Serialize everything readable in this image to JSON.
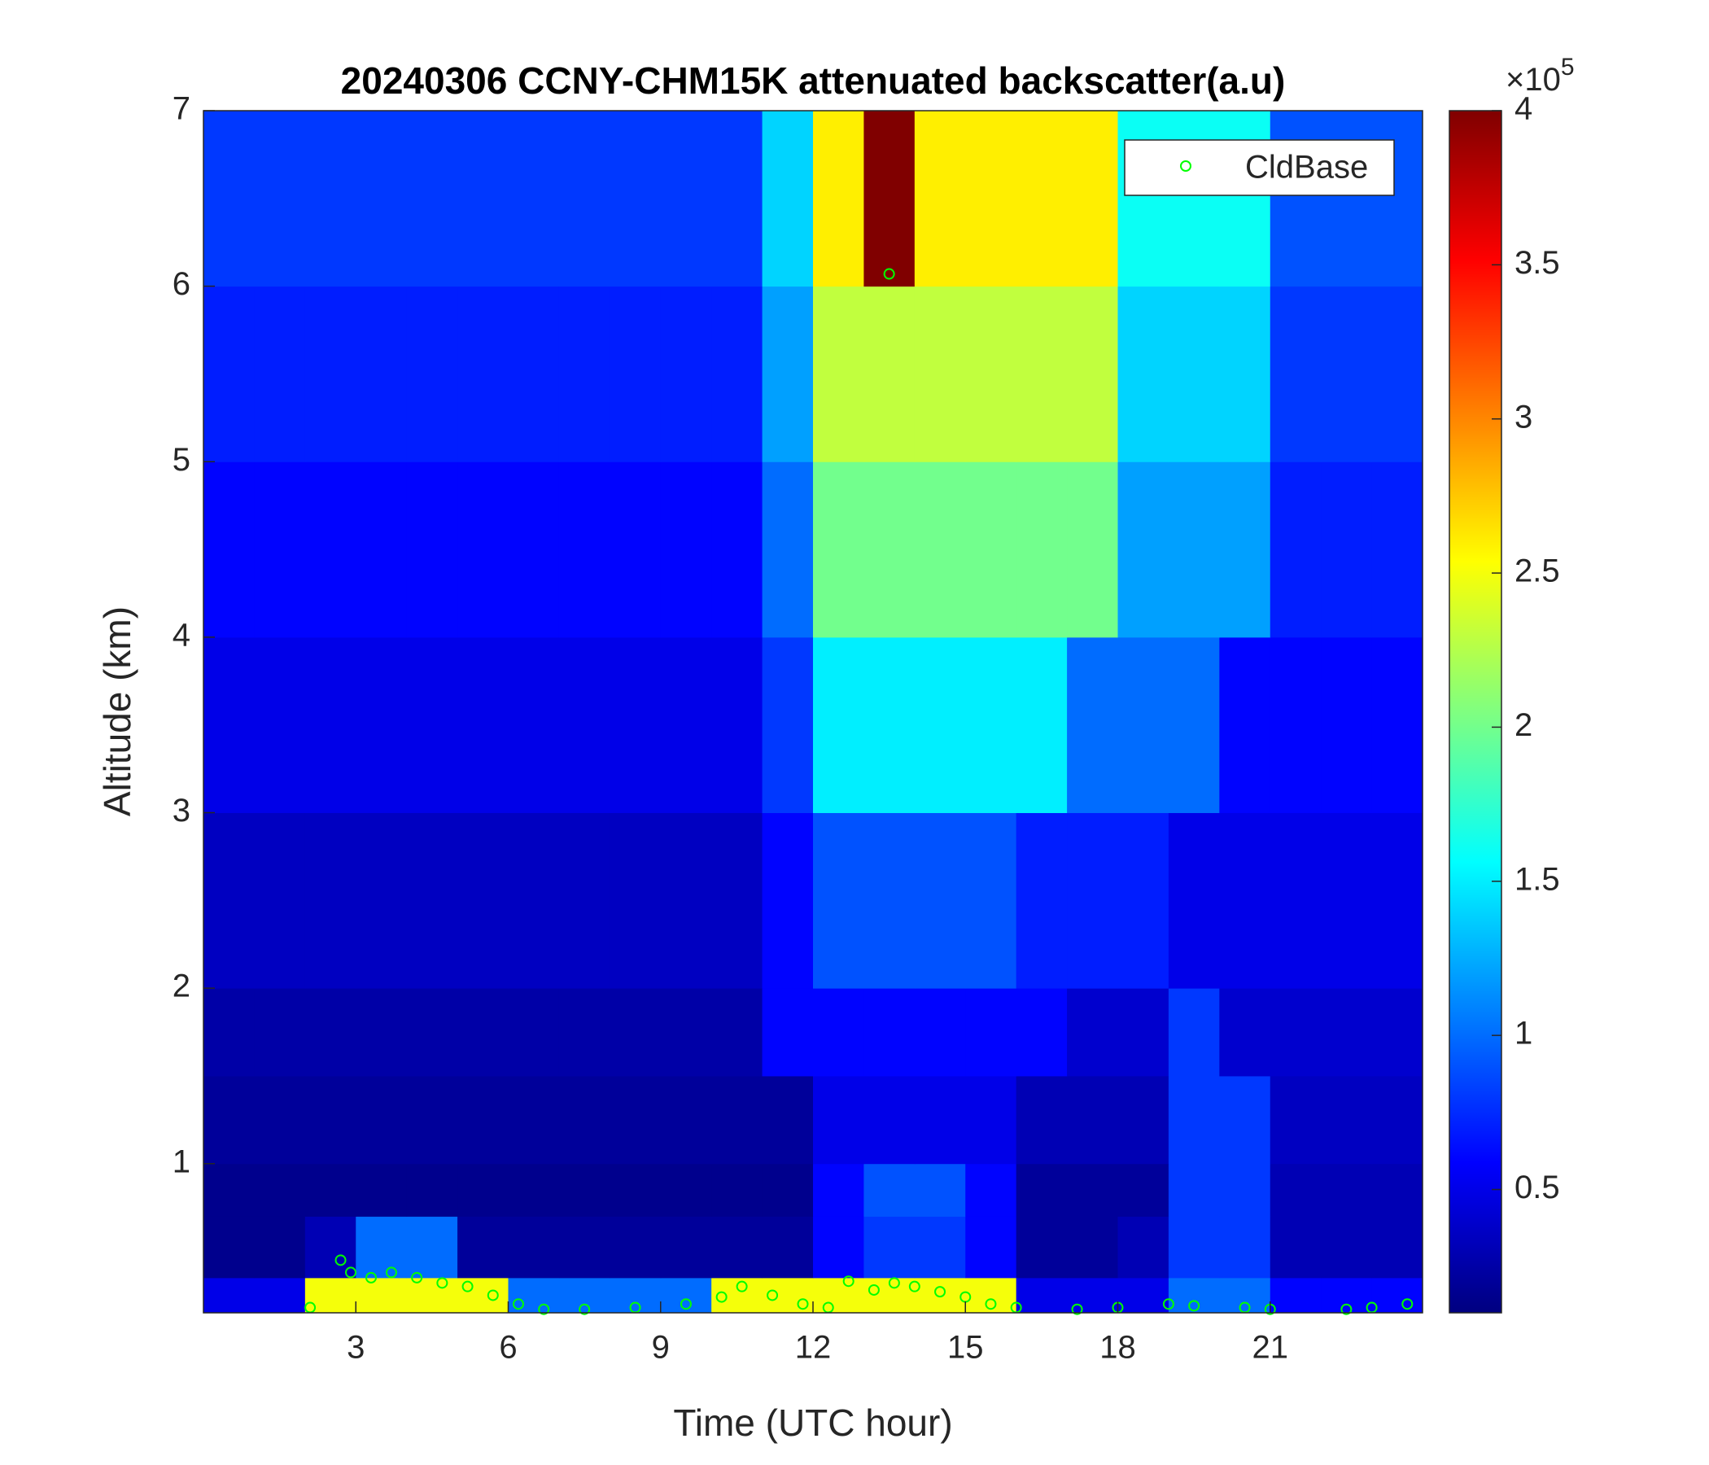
{
  "chart_data": {
    "type": "heatmap",
    "title": "20240306 CCNY-CHM15K attenuated backscatter(a.u)",
    "x_label": "Time (UTC hour)",
    "y_label": "Altitude (km)",
    "xlim": [
      0,
      24
    ],
    "xticks": [
      3,
      6,
      9,
      12,
      15,
      18,
      21
    ],
    "ylim": [
      0.15,
      7
    ],
    "yticks": [
      1,
      2,
      3,
      4,
      5,
      6,
      7
    ],
    "colormap": "jet",
    "clim": [
      0.1,
      4
    ],
    "cticks": [
      0.5,
      1,
      1.5,
      2,
      2.5,
      3,
      3.5,
      4
    ],
    "colorbar_scale": {
      "base": "×10",
      "exponent": "5"
    },
    "x_bins": [
      0,
      1,
      2,
      3,
      4,
      5,
      6,
      7,
      8,
      9,
      10,
      11,
      12,
      13,
      14,
      15,
      16,
      17,
      18,
      19,
      20,
      21,
      22,
      23,
      24
    ],
    "y_bins": [
      0.15,
      0.35,
      0.7,
      1,
      1.5,
      2,
      3,
      4,
      5,
      6,
      7
    ],
    "z": [
      [
        0.5,
        0.5,
        2.5,
        2.5,
        2.5,
        2.5,
        1.0,
        1.0,
        1.0,
        1.0,
        2.5,
        2.5,
        2.5,
        2.5,
        2.5,
        2.5,
        0.5,
        0.5,
        0.5,
        1.0,
        1.0,
        0.6,
        0.6,
        0.6
      ],
      [
        0.15,
        0.15,
        0.3,
        1.0,
        1.0,
        0.2,
        0.2,
        0.2,
        0.2,
        0.2,
        0.2,
        0.2,
        0.6,
        0.8,
        0.8,
        0.6,
        0.2,
        0.2,
        0.3,
        0.8,
        0.8,
        0.3,
        0.3,
        0.3
      ],
      [
        0.15,
        0.15,
        0.15,
        0.15,
        0.15,
        0.15,
        0.15,
        0.15,
        0.15,
        0.15,
        0.15,
        0.15,
        0.6,
        0.9,
        0.9,
        0.6,
        0.2,
        0.2,
        0.2,
        0.8,
        0.8,
        0.3,
        0.3,
        0.3
      ],
      [
        0.2,
        0.2,
        0.2,
        0.2,
        0.2,
        0.2,
        0.2,
        0.2,
        0.2,
        0.2,
        0.2,
        0.2,
        0.5,
        0.5,
        0.5,
        0.5,
        0.3,
        0.3,
        0.3,
        0.8,
        0.8,
        0.35,
        0.35,
        0.35
      ],
      [
        0.25,
        0.25,
        0.25,
        0.25,
        0.25,
        0.25,
        0.25,
        0.25,
        0.25,
        0.25,
        0.25,
        0.6,
        0.6,
        0.6,
        0.6,
        0.6,
        0.6,
        0.4,
        0.4,
        0.8,
        0.4,
        0.4,
        0.4,
        0.4
      ],
      [
        0.35,
        0.35,
        0.35,
        0.35,
        0.35,
        0.35,
        0.35,
        0.35,
        0.35,
        0.35,
        0.35,
        0.6,
        0.9,
        0.9,
        0.9,
        0.9,
        0.7,
        0.7,
        0.7,
        0.5,
        0.5,
        0.5,
        0.5,
        0.5
      ],
      [
        0.5,
        0.5,
        0.5,
        0.5,
        0.5,
        0.5,
        0.5,
        0.5,
        0.5,
        0.5,
        0.5,
        0.8,
        1.5,
        1.5,
        1.5,
        1.5,
        1.5,
        1.0,
        1.0,
        1.0,
        0.6,
        0.6,
        0.6,
        0.6
      ],
      [
        0.6,
        0.6,
        0.6,
        0.6,
        0.6,
        0.6,
        0.6,
        0.6,
        0.6,
        0.6,
        0.6,
        1.0,
        2.0,
        2.0,
        2.0,
        2.0,
        2.0,
        2.0,
        1.2,
        1.2,
        1.2,
        0.7,
        0.7,
        0.7
      ],
      [
        0.7,
        0.7,
        0.7,
        0.7,
        0.7,
        0.7,
        0.7,
        0.7,
        0.7,
        0.7,
        0.7,
        1.2,
        2.3,
        2.3,
        2.3,
        2.3,
        2.3,
        2.3,
        1.4,
        1.4,
        1.4,
        0.8,
        0.8,
        0.8
      ],
      [
        0.8,
        0.8,
        0.8,
        0.8,
        0.8,
        0.8,
        0.8,
        0.8,
        0.8,
        0.8,
        0.8,
        1.4,
        2.6,
        4,
        2.6,
        2.6,
        2.6,
        2.6,
        1.6,
        1.6,
        1.6,
        0.9,
        0.9,
        0.9
      ]
    ],
    "series": [
      {
        "name": "CldBase",
        "color": "#00ff00",
        "type": "scatter",
        "x": [
          2.1,
          2.7,
          2.9,
          3.3,
          3.7,
          4.2,
          4.7,
          5.2,
          5.7,
          6.2,
          6.7,
          7.5,
          8.5,
          9.5,
          10.2,
          10.6,
          11.2,
          11.8,
          12.3,
          12.7,
          13.2,
          13.5,
          13.6,
          14.0,
          14.5,
          15.0,
          15.5,
          16.0,
          17.2,
          18.0,
          19.0,
          19.5,
          20.5,
          21.0,
          22.5,
          23.0,
          23.7
        ],
        "values": [
          0.18,
          0.45,
          0.38,
          0.35,
          0.38,
          0.35,
          0.32,
          0.3,
          0.25,
          0.2,
          0.17,
          0.17,
          0.18,
          0.2,
          0.24,
          0.3,
          0.25,
          0.2,
          0.18,
          0.33,
          0.28,
          6.07,
          0.32,
          0.3,
          0.27,
          0.24,
          0.2,
          0.18,
          0.17,
          0.18,
          0.2,
          0.19,
          0.18,
          0.17,
          0.17,
          0.18,
          0.2
        ]
      }
    ],
    "legend": "upper right"
  }
}
